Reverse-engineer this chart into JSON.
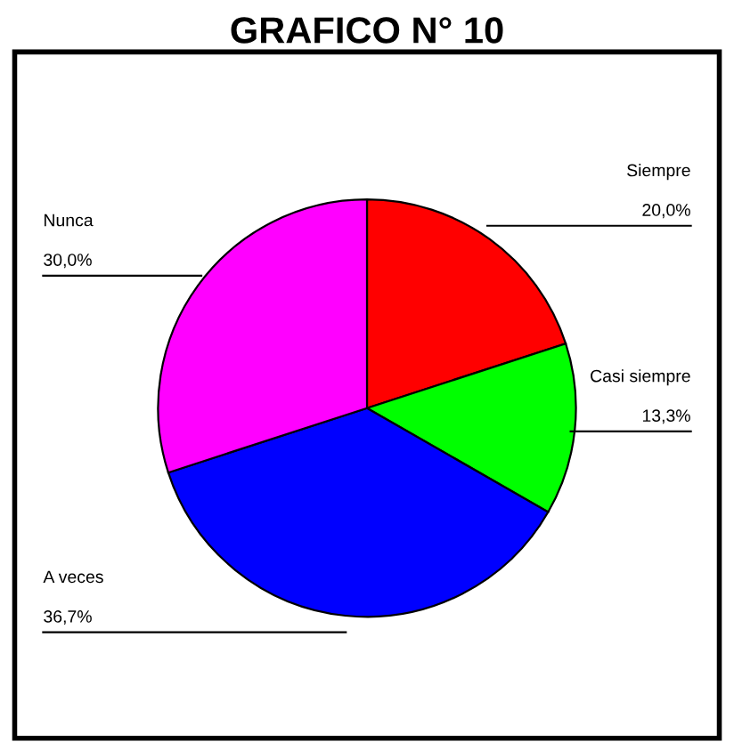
{
  "chart_data": {
    "type": "pie",
    "title": "GRAFICO N° 10",
    "categories": [
      "Siempre",
      "Casi siempre",
      "A veces",
      "Nunca"
    ],
    "values": [
      20.0,
      13.3,
      36.7,
      30.0
    ],
    "colors": [
      "#ff0000",
      "#00ff00",
      "#0000ff",
      "#ff00ff"
    ],
    "value_labels": [
      "20,0%",
      "13,3%",
      "36,7%",
      "30,0%"
    ],
    "legend": false
  }
}
